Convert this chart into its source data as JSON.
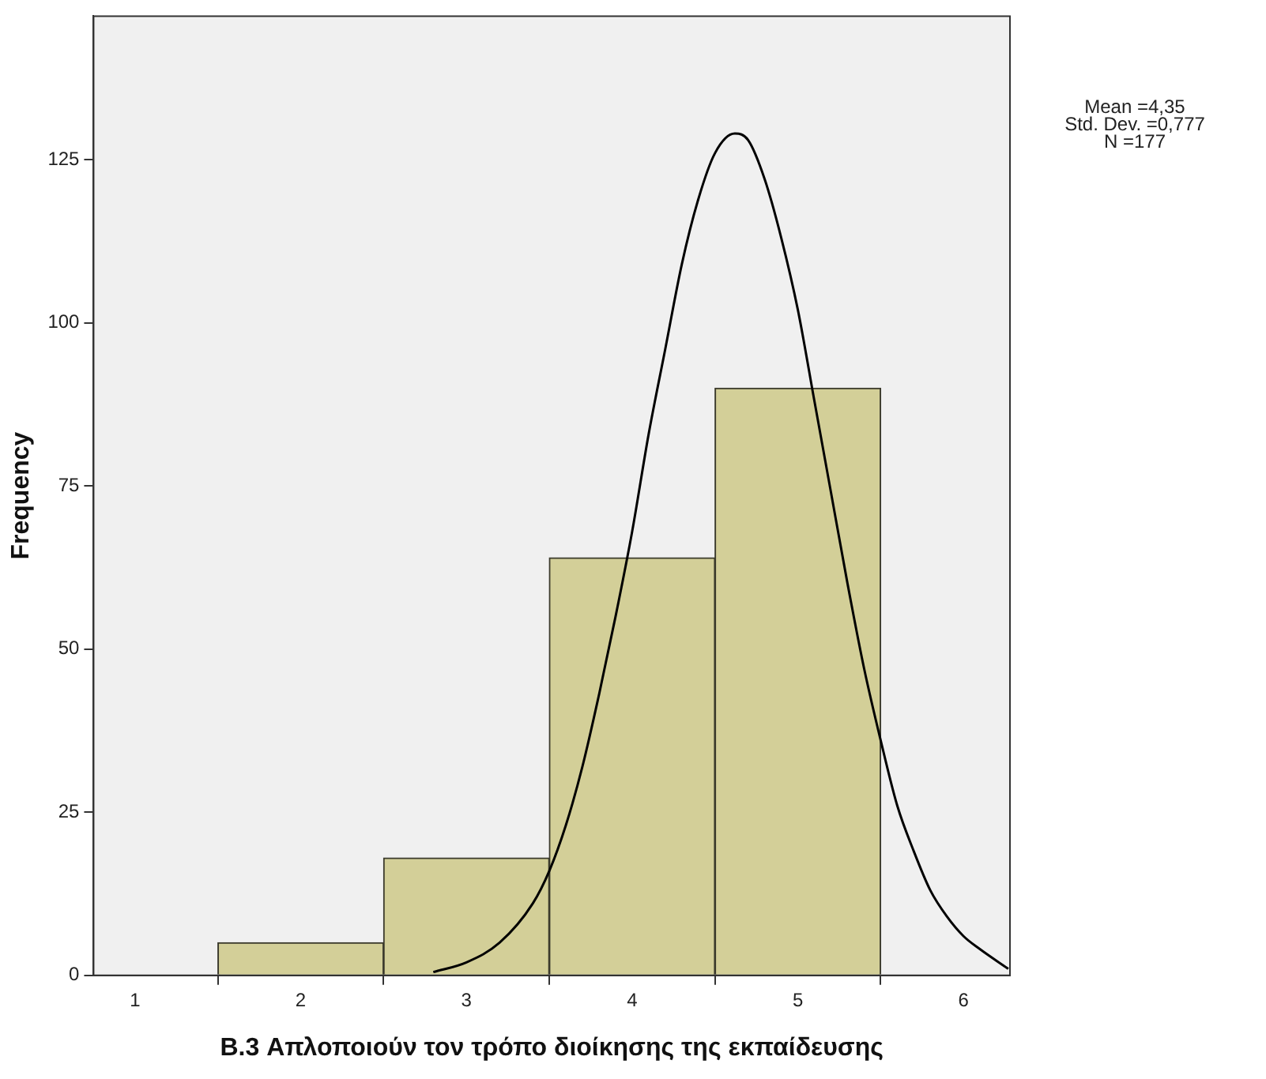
{
  "chart_data": {
    "type": "histogram",
    "xlabel": "B.3 Απλοποιούν τον τρόπο διοίκησης της εκπαίδευσης",
    "ylabel": "Frequency",
    "bins": [
      1.5,
      2.5,
      3.5,
      4.5,
      5.5
    ],
    "values": [
      5,
      18,
      64,
      90
    ],
    "color": "#d3cf98",
    "series": [
      {
        "type": "line",
        "color": "#000000",
        "x": [
          2.8,
          3.0,
          3.2,
          3.4,
          3.5,
          3.6,
          3.7,
          3.8,
          3.9,
          4.0,
          4.1,
          4.2,
          4.3,
          4.4,
          4.5,
          4.62,
          4.7,
          4.8,
          4.9,
          5.0,
          5.1,
          5.2,
          5.3,
          5.4,
          5.5,
          5.6,
          5.7,
          5.8,
          5.9,
          6.0,
          6.1,
          6.27
        ],
        "values": [
          0.5,
          2,
          5,
          11,
          16,
          23,
          32,
          43,
          55,
          68,
          83,
          96,
          109,
          119,
          126,
          129,
          128,
          122,
          113,
          102,
          88,
          74,
          60,
          47,
          36,
          26,
          19,
          13,
          9,
          6,
          4,
          1
        ]
      }
    ],
    "xlim": [
      0.75,
      6.28
    ],
    "xticks": [
      1,
      2,
      3,
      4,
      5,
      6
    ],
    "ylim": [
      0,
      147
    ],
    "yticks": [
      0,
      25,
      50,
      75,
      100,
      125
    ],
    "grid": false,
    "legend": false,
    "annotations": [
      "Mean =4,35",
      "Std. Dev. =0,777",
      "N =177"
    ]
  }
}
